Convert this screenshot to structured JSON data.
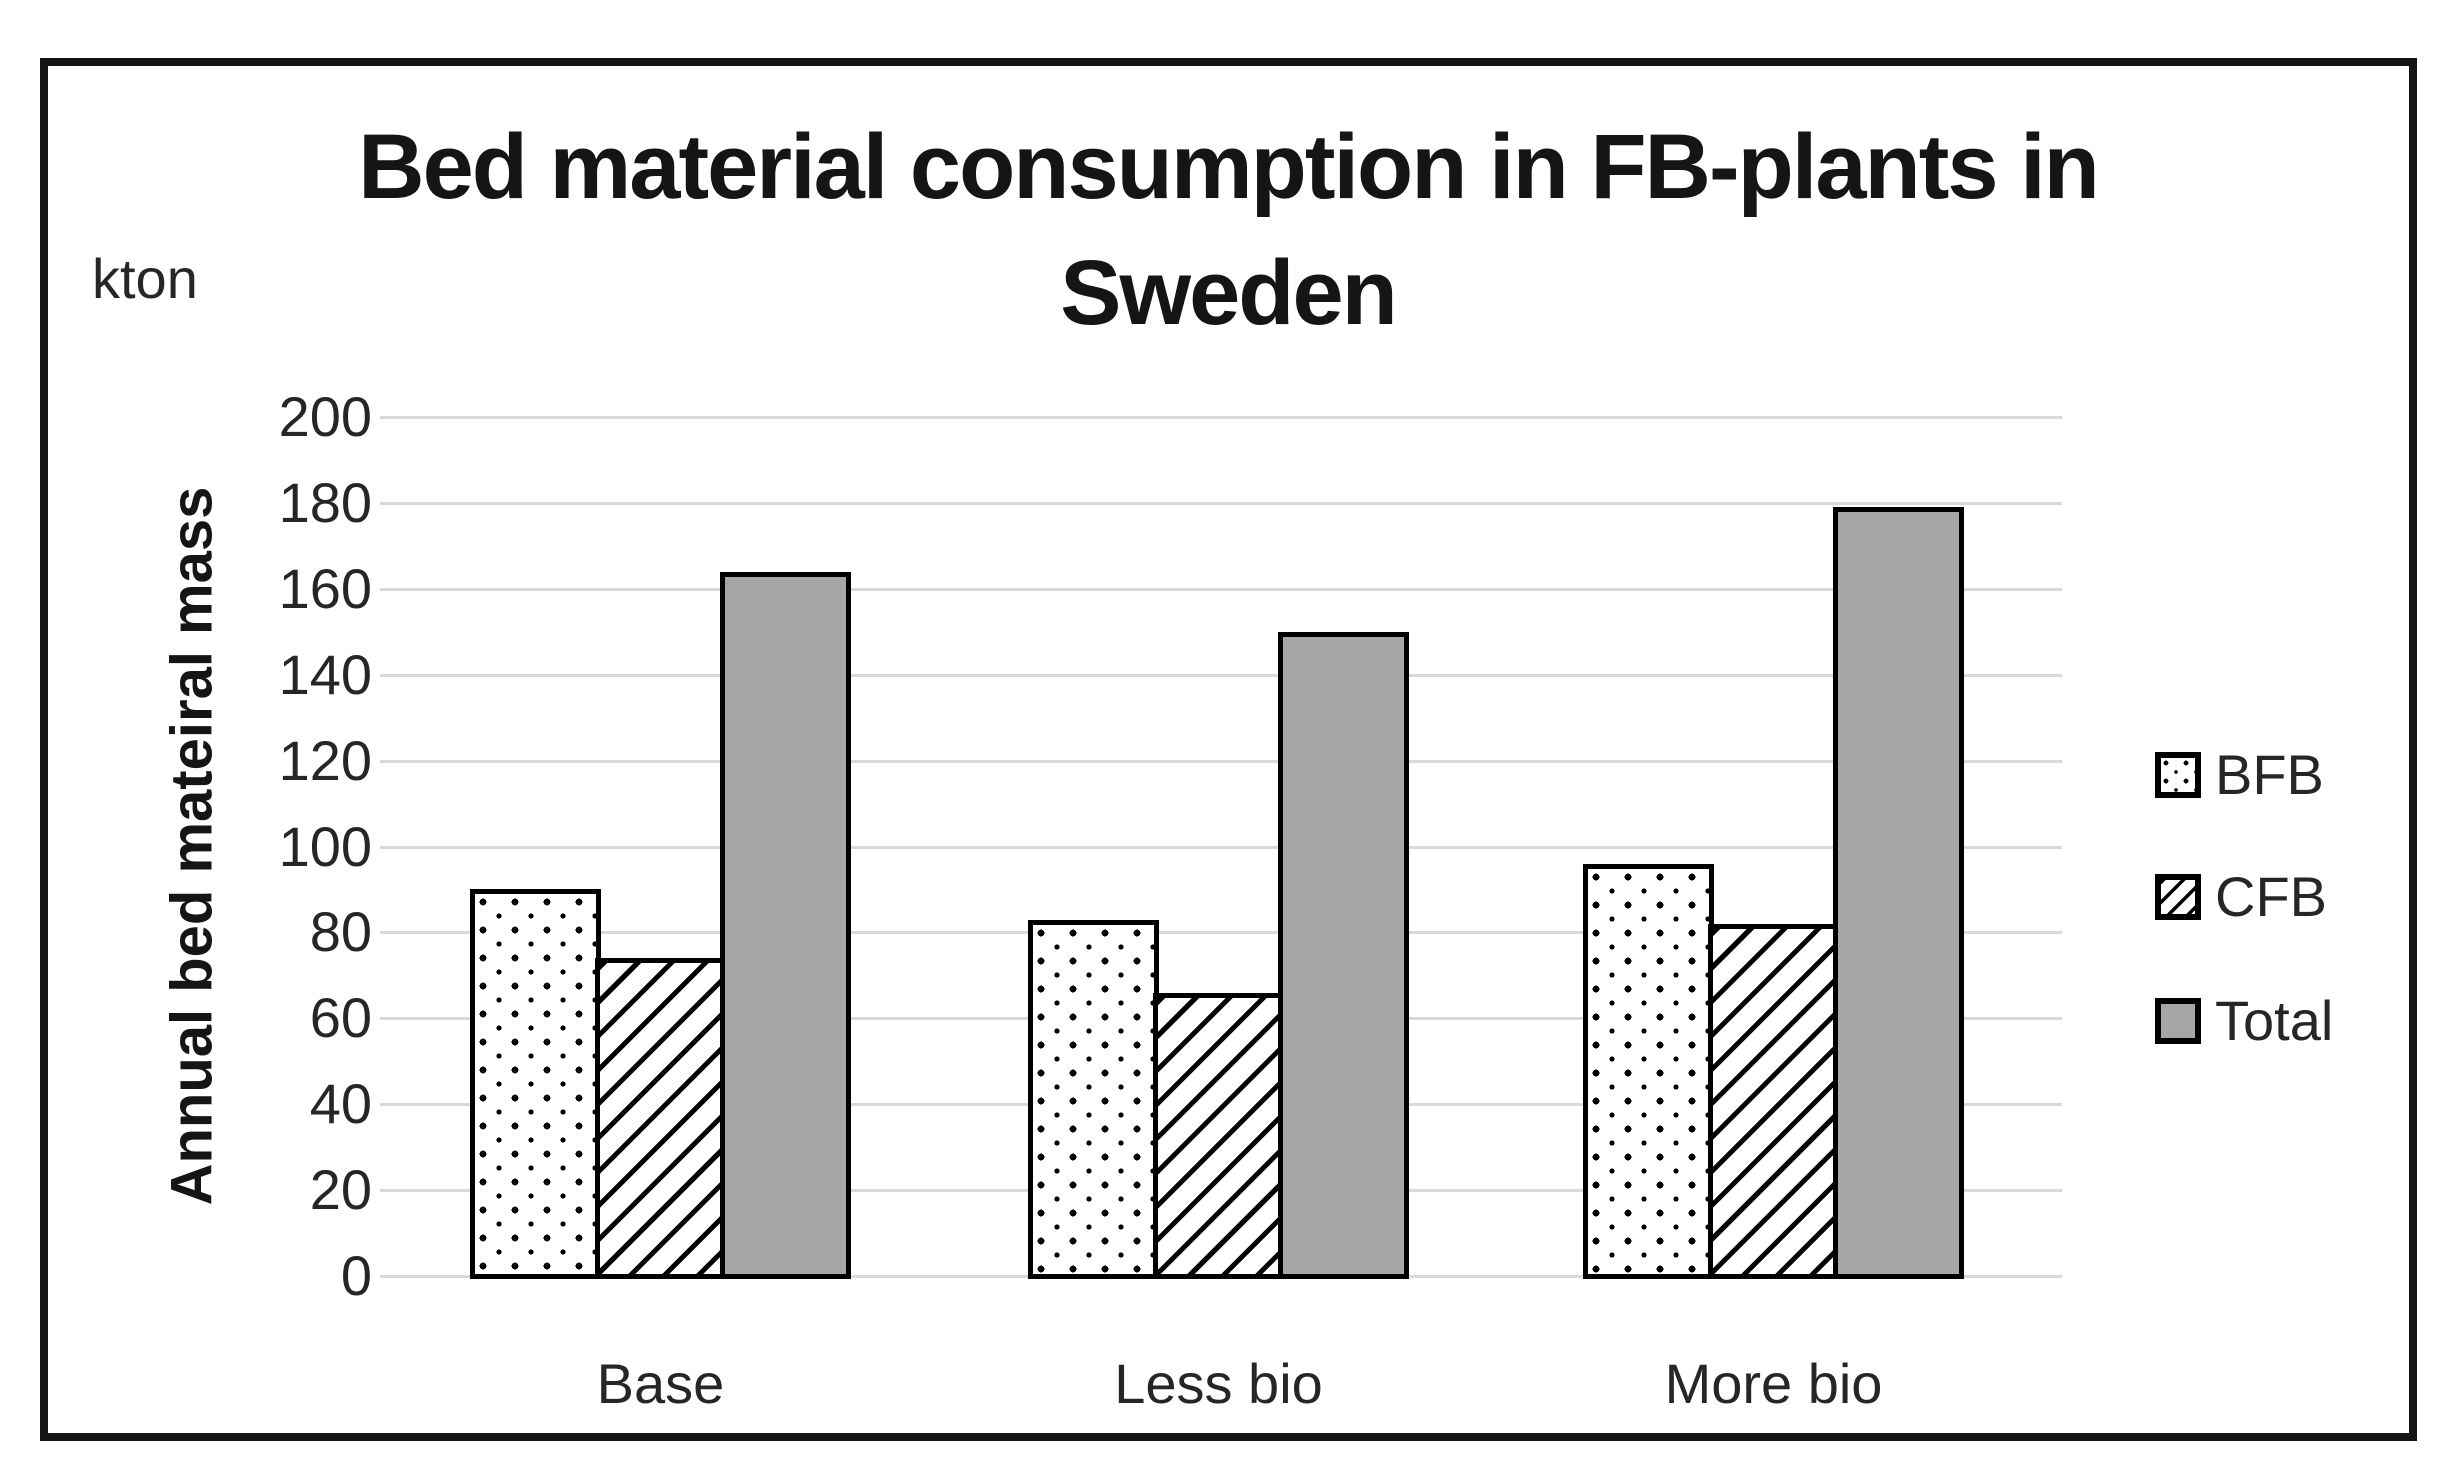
{
  "figure": {
    "title": "Bed material consumption in FB-plants in Sweden",
    "title_lines": [
      "Bed material consumption in FB-plants in",
      "Sweden"
    ],
    "unit_label": "kton",
    "y_axis_label": "Annual bed mateiral mass"
  },
  "chart_data": {
    "type": "bar",
    "title": "Bed material consumption in FB-plants in Sweden",
    "unit": "kton",
    "categories": [
      "Base",
      "Less bio",
      "More bio"
    ],
    "series": [
      {
        "name": "BFB",
        "pattern": "dots",
        "values": [
          90,
          83,
          96
        ]
      },
      {
        "name": "CFB",
        "pattern": "diagonal-hatch",
        "values": [
          74,
          66,
          82
        ]
      },
      {
        "name": "Total",
        "pattern": "solid-gray",
        "color": "#a6a6a6",
        "values": [
          164,
          150,
          179
        ]
      }
    ],
    "xlabel": "",
    "ylabel": "Annual bed mateiral mass",
    "ylim": [
      0,
      200
    ],
    "ytick_step": 20,
    "yticks": [
      0,
      20,
      40,
      60,
      80,
      100,
      120,
      140,
      160,
      180,
      200
    ],
    "grid": true,
    "legend_position": "right"
  },
  "colors": {
    "total_fill": "#a6a6a6",
    "gridline": "#d9d9d9",
    "bar_border": "#000000",
    "frame_border": "#151515",
    "background": "#ffffff"
  }
}
